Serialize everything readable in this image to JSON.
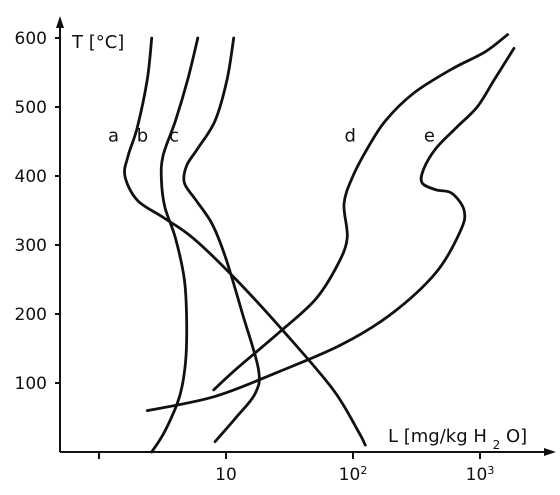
{
  "chart_data": {
    "type": "line",
    "title": "",
    "xlabel": {
      "prefix": "L [mg/kg H",
      "subscript": "2",
      "suffix": "O]"
    },
    "ylabel": "T [°C]",
    "xscale": "log",
    "ylim": [
      0,
      650
    ],
    "xlim": [
      0.5,
      5000
    ],
    "yticks": [
      100,
      200,
      300,
      400,
      500,
      600
    ],
    "ytick_labels": [
      "100",
      "200",
      "300",
      "400",
      "500",
      "600"
    ],
    "xticks": [
      1,
      10,
      100,
      1000
    ],
    "xtick_labels": [
      {
        "base": "",
        "exp": ""
      },
      {
        "base": "10",
        "exp": ""
      },
      {
        "base": "10",
        "exp": "2"
      },
      {
        "base": "10",
        "exp": "3"
      }
    ],
    "grid": false,
    "legend": "none",
    "series": [
      {
        "label": "a",
        "label_at": [
          1.3,
          450
        ],
        "points": [
          [
            2.6,
            600
          ],
          [
            2.4,
            540
          ],
          [
            2.0,
            470
          ],
          [
            1.7,
            430
          ],
          [
            1.6,
            400
          ],
          [
            2.0,
            365
          ],
          [
            3.2,
            340
          ],
          [
            5.5,
            310
          ],
          [
            12,
            250
          ],
          [
            30,
            170
          ],
          [
            70,
            90
          ],
          [
            110,
            30
          ],
          [
            125,
            10
          ]
        ]
      },
      {
        "label": "b",
        "label_at": [
          2.2,
          450
        ],
        "points": [
          [
            6.0,
            600
          ],
          [
            5.0,
            540
          ],
          [
            4.0,
            480
          ],
          [
            3.2,
            430
          ],
          [
            3.1,
            395
          ],
          [
            3.3,
            355
          ],
          [
            4.0,
            310
          ],
          [
            4.7,
            250
          ],
          [
            4.9,
            190
          ],
          [
            4.8,
            130
          ],
          [
            4.3,
            80
          ],
          [
            3.3,
            30
          ],
          [
            2.6,
            0
          ]
        ]
      },
      {
        "label": "c",
        "label_at": [
          3.9,
          450
        ],
        "points": [
          [
            11.5,
            600
          ],
          [
            10.2,
            540
          ],
          [
            8.2,
            480
          ],
          [
            6.0,
            440
          ],
          [
            4.9,
            415
          ],
          [
            4.7,
            390
          ],
          [
            5.8,
            365
          ],
          [
            7.8,
            330
          ],
          [
            10,
            280
          ],
          [
            13.5,
            200
          ],
          [
            18,
            120
          ],
          [
            17,
            85
          ],
          [
            12,
            50
          ],
          [
            8.2,
            15
          ]
        ]
      },
      {
        "label": "d",
        "label_at": [
          95,
          450
        ],
        "points": [
          [
            1650,
            605
          ],
          [
            1100,
            580
          ],
          [
            600,
            555
          ],
          [
            300,
            520
          ],
          [
            180,
            480
          ],
          [
            130,
            440
          ],
          [
            100,
            400
          ],
          [
            85,
            360
          ],
          [
            90,
            310
          ],
          [
            75,
            270
          ],
          [
            50,
            220
          ],
          [
            25,
            170
          ],
          [
            12,
            120
          ],
          [
            8,
            90
          ]
        ]
      },
      {
        "label": "e",
        "label_at": [
          400,
          450
        ],
        "points": [
          [
            1850,
            585
          ],
          [
            1300,
            540
          ],
          [
            950,
            500
          ],
          [
            650,
            470
          ],
          [
            450,
            440
          ],
          [
            360,
            410
          ],
          [
            350,
            390
          ],
          [
            450,
            380
          ],
          [
            600,
            375
          ],
          [
            750,
            350
          ],
          [
            700,
            320
          ],
          [
            450,
            260
          ],
          [
            200,
            200
          ],
          [
            80,
            155
          ],
          [
            25,
            115
          ],
          [
            8,
            80
          ],
          [
            2.4,
            60
          ]
        ]
      }
    ]
  }
}
